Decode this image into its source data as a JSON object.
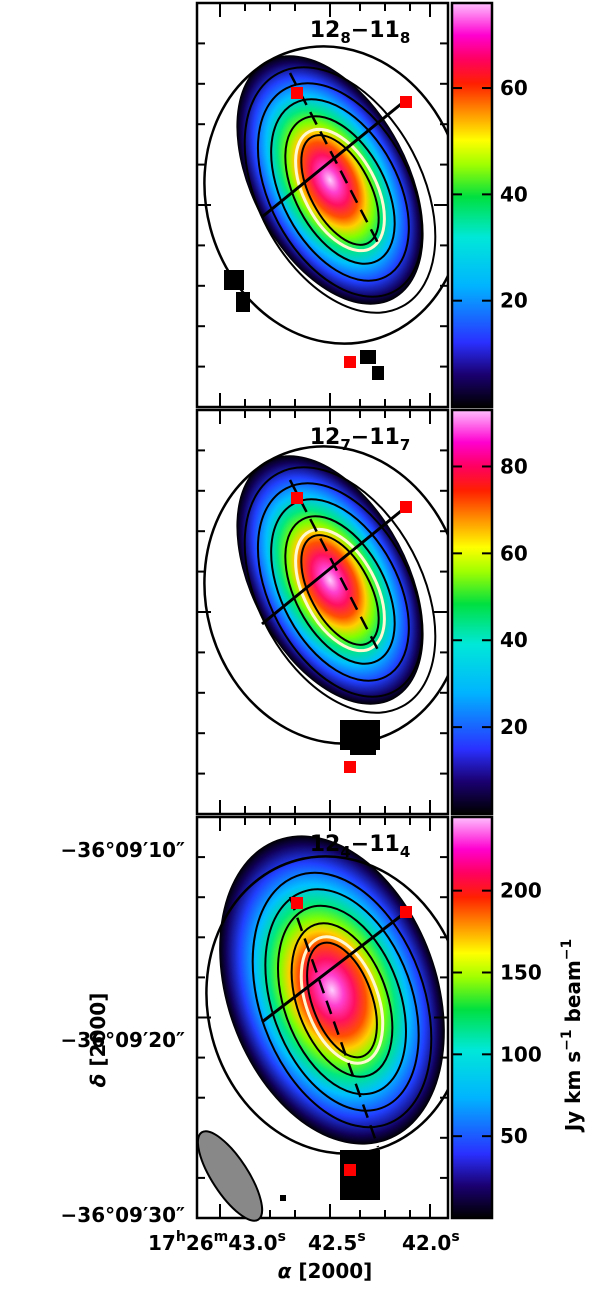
{
  "chart_data": {
    "type": "heatmap",
    "panels": [
      {
        "transition": {
          "main": "12",
          "sub1": "8",
          "mid": "−11",
          "sub2": "8"
        },
        "colorbar_ticks": [
          20,
          40,
          60
        ],
        "colorbar_range": [
          0,
          76
        ],
        "peak_intensity": 72
      },
      {
        "transition": {
          "main": "12",
          "sub1": "7",
          "mid": "−11",
          "sub2": "7"
        },
        "colorbar_ticks": [
          20,
          40,
          60,
          80
        ],
        "colorbar_range": [
          0,
          93
        ],
        "peak_intensity": 88
      },
      {
        "transition": {
          "main": "12",
          "sub1": "4",
          "mid": "−11",
          "sub2": "4"
        },
        "colorbar_ticks": [
          50,
          100,
          150,
          200
        ],
        "colorbar_range": [
          0,
          245
        ],
        "peak_intensity": 235
      }
    ],
    "y_axis": {
      "label_symbol": "δ",
      "label_unit": "[2000]",
      "ticks": [
        "−36°09′10″",
        "−36°09′20″",
        "−36°09′30″"
      ]
    },
    "x_axis": {
      "label_symbol": "α",
      "label_unit": "[2000]",
      "ticks": [
        {
          "h": "17",
          "hs": "h",
          "m": "26",
          "ms": "m",
          "s": "43.0",
          "ss": "s"
        },
        {
          "s": "42.5",
          "ss": "s"
        },
        {
          "s": "42.0",
          "ss": "s"
        }
      ]
    },
    "colorbar_label": {
      "text": "Jy km s",
      "exp": "−1",
      "tail": " beam",
      "exp2": "−1"
    },
    "colors": {
      "frame": "#000000",
      "markers": "#ff0000",
      "beam": "#888888",
      "hot_contour": "#fff8d0"
    }
  }
}
